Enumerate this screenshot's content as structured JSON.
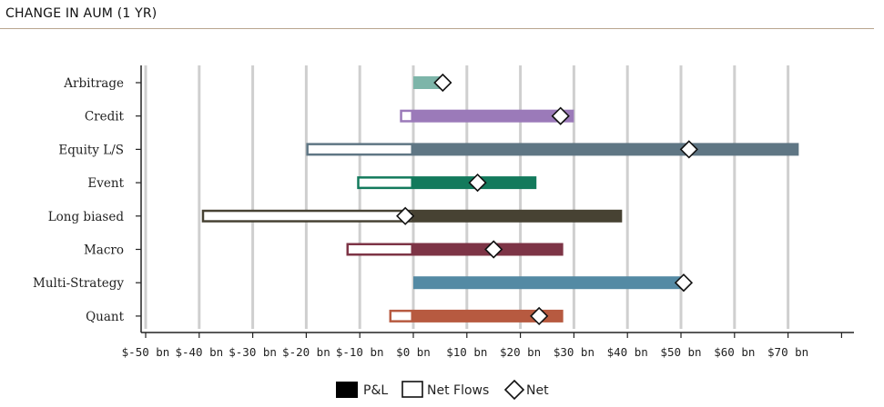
{
  "title": "CHANGE IN AUM (1 YR)",
  "chart_data": {
    "type": "bar",
    "orientation": "horizontal",
    "categories": [
      "Arbitrage",
      "Credit",
      "Equity L/S",
      "Event",
      "Long biased",
      "Macro",
      "Multi-Strategy",
      "Quant"
    ],
    "series": [
      {
        "name": "P&L",
        "values": [
          5,
          30,
          72,
          23,
          39,
          28,
          51,
          28
        ],
        "style": "filled"
      },
      {
        "name": "Net Flows",
        "values": [
          0,
          -2.5,
          -20,
          -10.5,
          -39.5,
          -12.5,
          0,
          -4.5
        ],
        "style": "outline"
      },
      {
        "name": "Net",
        "values": [
          5.5,
          27.5,
          51.5,
          12,
          -1.5,
          15,
          50.5,
          23.5
        ],
        "style": "diamond"
      }
    ],
    "colors": [
      "#7db5a9",
      "#9b7ab9",
      "#5f7684",
      "#137a5c",
      "#474233",
      "#7d3446",
      "#548aa4",
      "#b75a40"
    ],
    "xticks": [
      "$-50 bn",
      "$-40 bn",
      "$-30 bn",
      "$-20 bn",
      "$-10 bn",
      "$0 bn",
      "$10 bn",
      "$20 bn",
      "$30 bn",
      "$40 bn",
      "$50 bn",
      "$60 bn",
      "$70 bn"
    ],
    "xlim": [
      -50,
      80
    ],
    "grid": true,
    "legend_position": "bottom-center"
  }
}
